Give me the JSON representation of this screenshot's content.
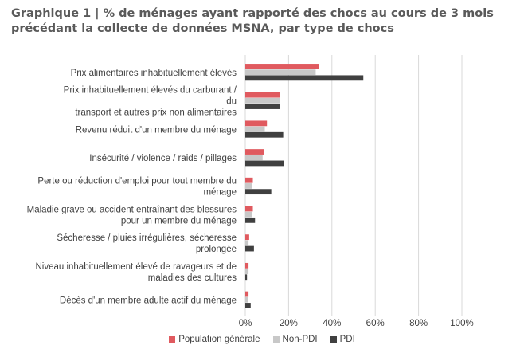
{
  "chart_data": {
    "type": "bar",
    "orientation": "horizontal",
    "title": "Graphique 1 | % de ménages ayant rapporté des chocs au cours de 3 mois précédant la collecte de données MSNA, par type de chocs",
    "categories": [
      [
        "Prix alimentaires inhabituellement élevés"
      ],
      [
        "Prix inhabituellement élevés du carburant /",
        "du",
        "transport et autres prix non alimentaires"
      ],
      [
        "Revenu réduit d'un membre du ménage"
      ],
      [
        "Insécurité / violence / raids / pillages"
      ],
      [
        "Perte ou réduction d'emploi pour tout membre du",
        "ménage"
      ],
      [
        "Maladie grave ou accident entraînant des blessures",
        "pour un membre du ménage"
      ],
      [
        "Sécheresse / pluies irrégulières, sécheresse",
        "prolongée"
      ],
      [
        "Niveau inhabituellement élevé de ravageurs et de",
        "maladies des cultures"
      ],
      [
        "Décès d'un membre adulte actif du ménage"
      ]
    ],
    "series": [
      {
        "name": "Population générale",
        "color": "#e05a5f",
        "values": [
          34,
          16,
          10,
          8.5,
          3.5,
          3.5,
          1.8,
          1.5,
          1.5
        ]
      },
      {
        "name": "Non-PDI",
        "color": "#c8c8c8",
        "values": [
          32.5,
          16,
          9,
          8,
          3,
          3,
          1.5,
          1.5,
          1.3
        ]
      },
      {
        "name": "PDI",
        "color": "#404040",
        "values": [
          54.5,
          16,
          17.5,
          18,
          12,
          4.5,
          4,
          0.8,
          2.5
        ]
      }
    ],
    "xticks": [
      "0%",
      "20%",
      "40%",
      "60%",
      "80%",
      "100%"
    ],
    "xlim": [
      0,
      100
    ],
    "grid": true,
    "legend_position": "bottom"
  }
}
